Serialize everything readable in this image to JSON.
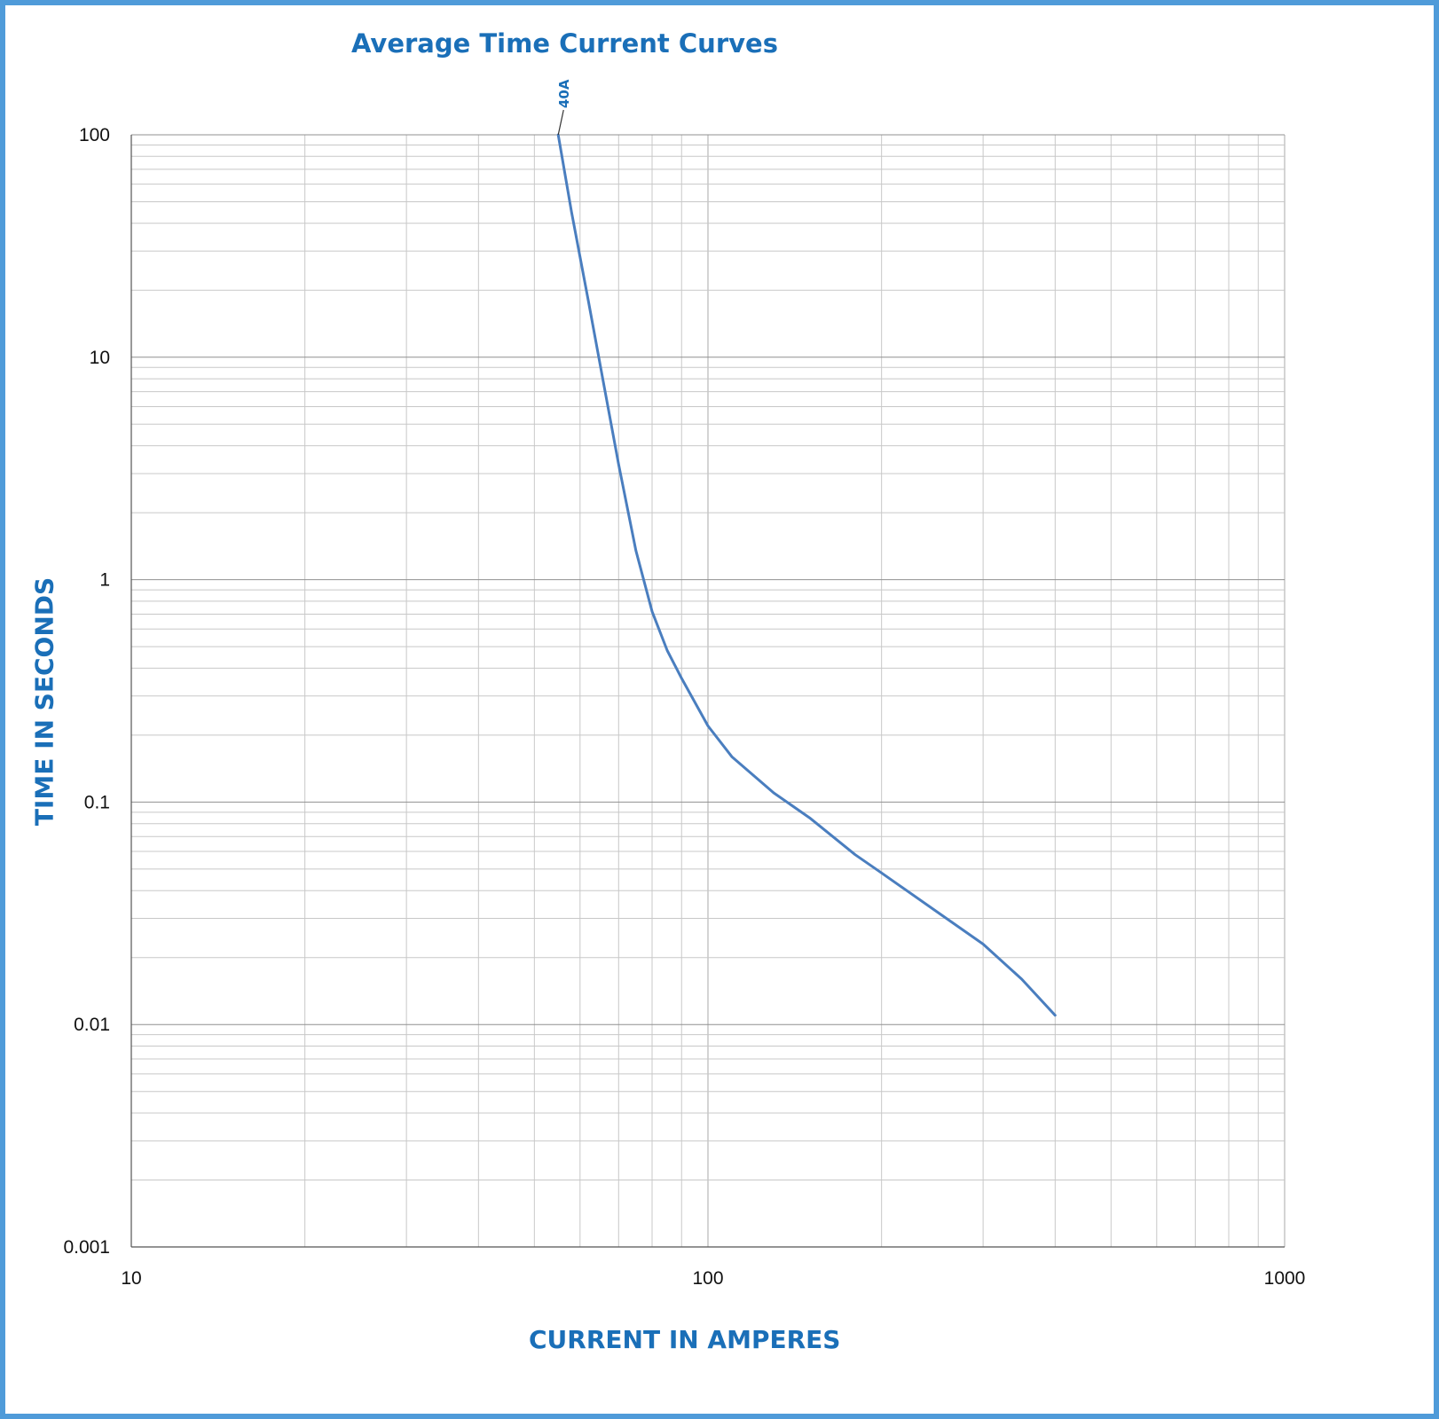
{
  "chart_data": {
    "type": "line",
    "title": "Average Time Current Curves",
    "xlabel": "CURRENT IN AMPERES",
    "ylabel": "TIME IN SECONDS",
    "x_scale": "log",
    "y_scale": "log",
    "xlim": [
      10,
      1000
    ],
    "ylim": [
      0.001,
      100
    ],
    "x_ticks": [
      "10",
      "100",
      "1000"
    ],
    "y_ticks": [
      "100",
      "10",
      "1",
      "0.1",
      "0.01",
      "0.001"
    ],
    "grid": true,
    "series": [
      {
        "name": "40A",
        "color": "#4a7ebf",
        "x": [
          55,
          58,
          62,
          66,
          70,
          75,
          80,
          85,
          90,
          100,
          110,
          130,
          150,
          180,
          200,
          250,
          300,
          350,
          400
        ],
        "y": [
          100,
          45,
          18,
          7.5,
          3.3,
          1.35,
          0.72,
          0.48,
          0.36,
          0.22,
          0.16,
          0.11,
          0.085,
          0.058,
          0.048,
          0.032,
          0.023,
          0.016,
          0.011
        ]
      }
    ]
  },
  "colors": {
    "accent": "#1a6fb8",
    "frame": "#4f9bd9",
    "grid": "#c8c8c8",
    "curve": "#4a7ebf"
  }
}
